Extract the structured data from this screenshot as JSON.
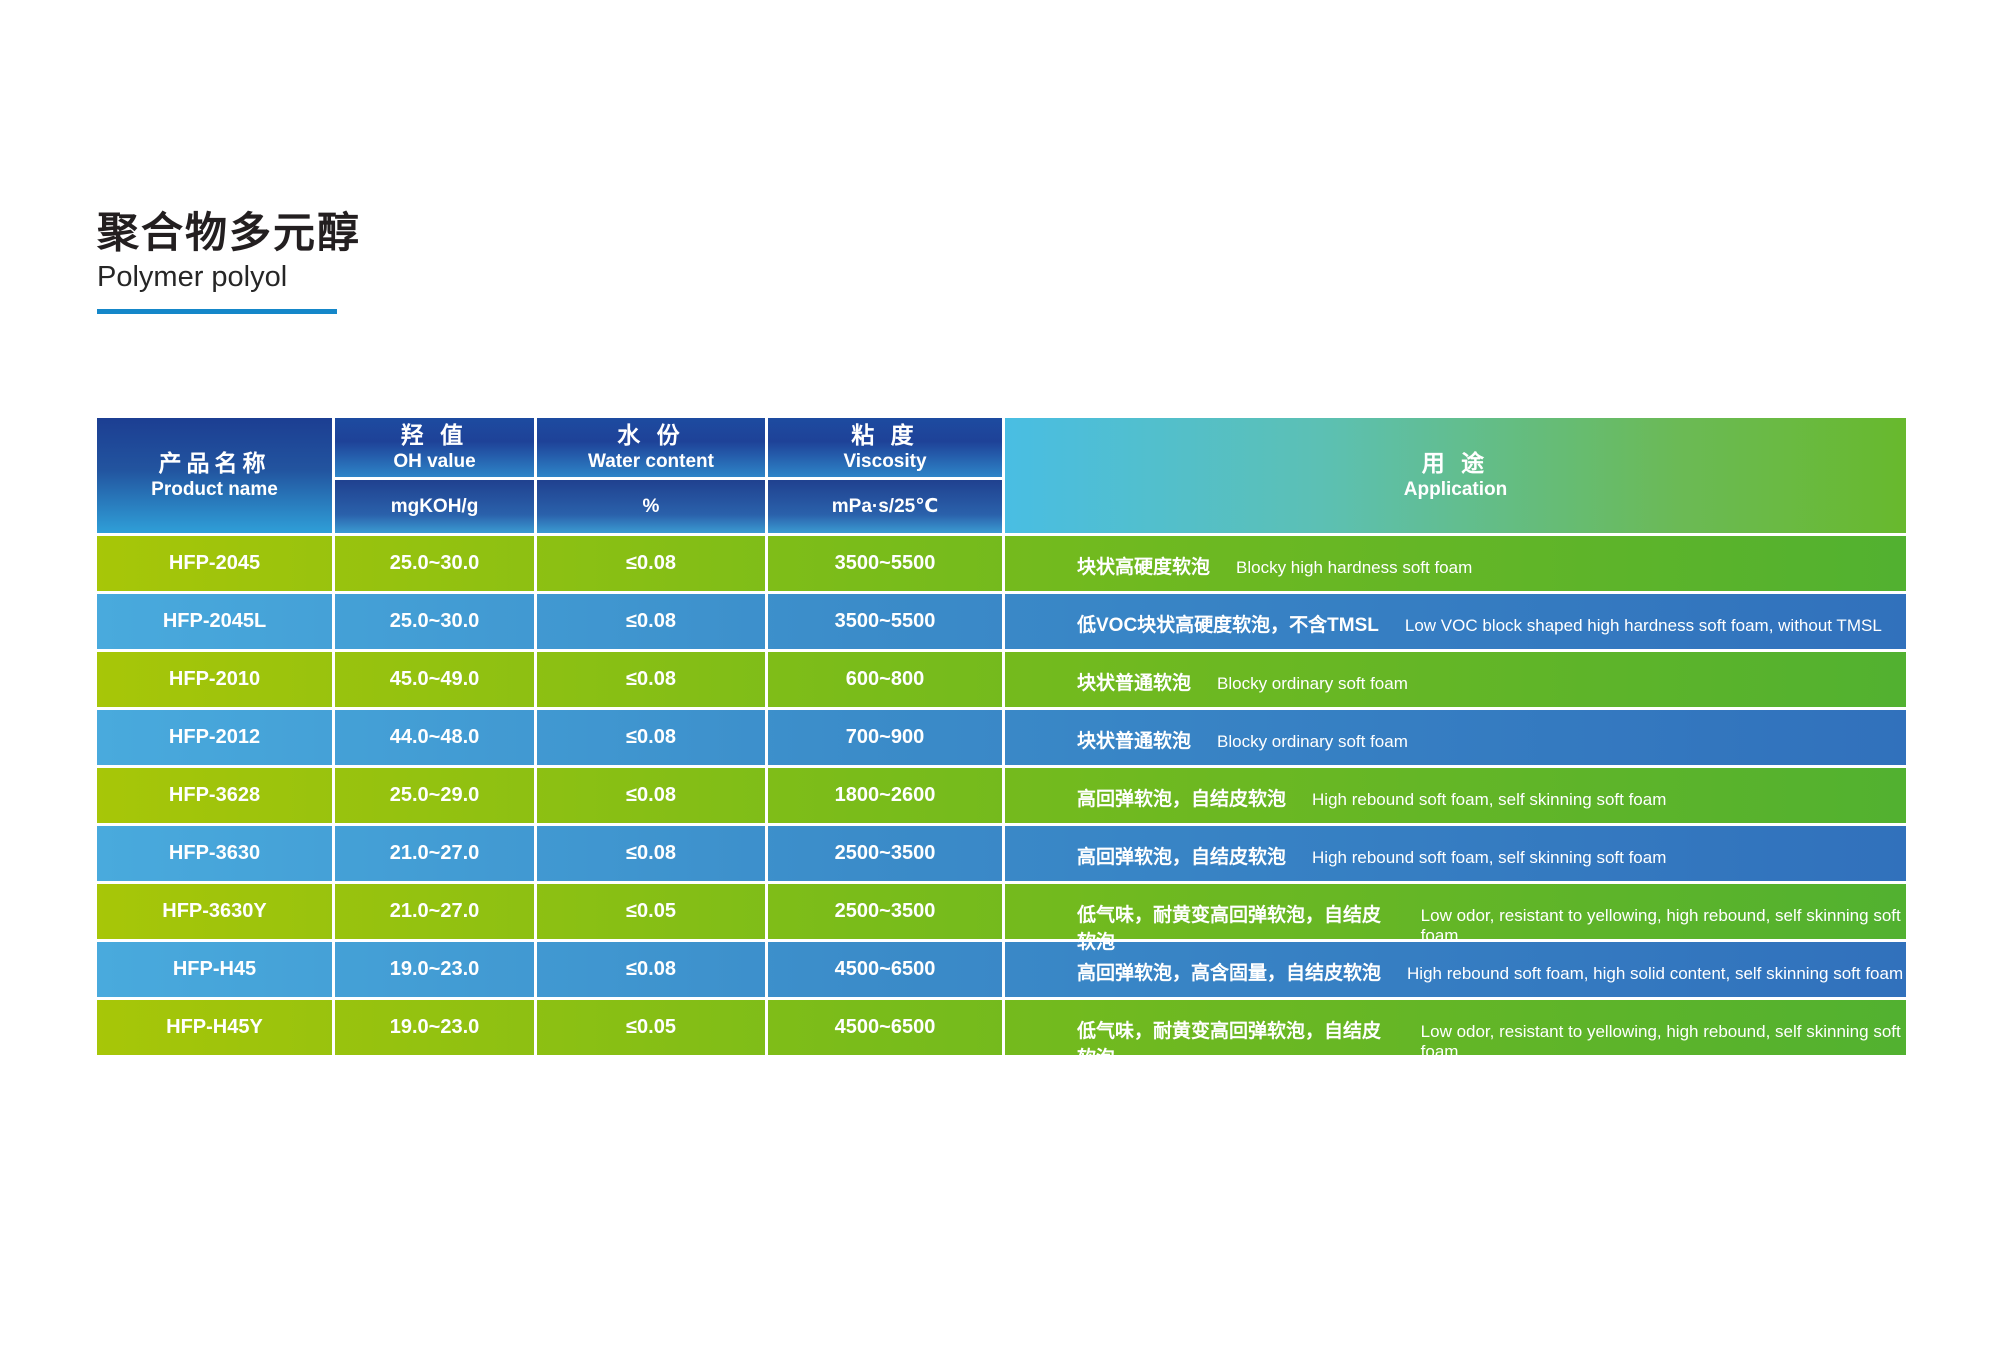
{
  "header": {
    "title_zh": "聚合物多元醇",
    "title_en": "Polymer polyol"
  },
  "table": {
    "header": {
      "product_zh": "产品名称",
      "product_en": "Product name",
      "cols": [
        {
          "zh": "羟 值",
          "en": "OH value",
          "unit": "mgKOH/g"
        },
        {
          "zh": "水 份",
          "en": "Water content",
          "unit": "%"
        },
        {
          "zh": "粘 度",
          "en": "Viscosity",
          "unit": "mPa·s/25℃"
        }
      ],
      "application_zh": "用 途",
      "application_en": "Application"
    },
    "rows": [
      {
        "name": "HFP-2045",
        "oh": "25.0~30.0",
        "water": "≤0.08",
        "viscosity": "3500~5500",
        "app_zh": "块状高硬度软泡",
        "app_en": "Blocky high hardness soft foam",
        "tone": "green"
      },
      {
        "name": "HFP-2045L",
        "oh": "25.0~30.0",
        "water": "≤0.08",
        "viscosity": "3500~5500",
        "app_zh": "低VOC块状高硬度软泡，不含TMSL",
        "app_en": "Low VOC block shaped high hardness soft foam, without TMSL",
        "tone": "blue"
      },
      {
        "name": "HFP-2010",
        "oh": "45.0~49.0",
        "water": "≤0.08",
        "viscosity": "600~800",
        "app_zh": "块状普通软泡",
        "app_en": "Blocky ordinary soft foam",
        "tone": "green"
      },
      {
        "name": "HFP-2012",
        "oh": "44.0~48.0",
        "water": "≤0.08",
        "viscosity": "700~900",
        "app_zh": "块状普通软泡",
        "app_en": "Blocky ordinary soft foam",
        "tone": "blue"
      },
      {
        "name": "HFP-3628",
        "oh": "25.0~29.0",
        "water": "≤0.08",
        "viscosity": "1800~2600",
        "app_zh": "高回弹软泡，自结皮软泡",
        "app_en": "High rebound soft foam, self skinning soft foam",
        "tone": "green"
      },
      {
        "name": "HFP-3630",
        "oh": "21.0~27.0",
        "water": "≤0.08",
        "viscosity": "2500~3500",
        "app_zh": "高回弹软泡，自结皮软泡",
        "app_en": "High rebound soft foam, self skinning soft foam",
        "tone": "blue"
      },
      {
        "name": "HFP-3630Y",
        "oh": "21.0~27.0",
        "water": "≤0.05",
        "viscosity": "2500~3500",
        "app_zh": "低气味，耐黄变高回弹软泡，自结皮软泡",
        "app_en": "Low odor, resistant to yellowing, high rebound, self skinning soft foam",
        "tone": "green"
      },
      {
        "name": "HFP-H45",
        "oh": "19.0~23.0",
        "water": "≤0.08",
        "viscosity": "4500~6500",
        "app_zh": "高回弹软泡，高含固量，自结皮软泡",
        "app_en": "High rebound soft foam, high solid content, self skinning soft foam",
        "tone": "blue"
      },
      {
        "name": "HFP-H45Y",
        "oh": "19.0~23.0",
        "water": "≤0.05",
        "viscosity": "4500~6500",
        "app_zh": "低气味，耐黄变高回弹软泡，自结皮软泡",
        "app_en": "Low odor, resistant to yellowing, high rebound, self skinning soft foam",
        "tone": "green"
      }
    ]
  },
  "colors": {
    "accent_underline": "#1587c9",
    "header_blue_dark": "#1c3e92",
    "header_blue_light": "#2f9fd8",
    "app_header_cyan": "#49bee3",
    "app_header_green": "#68b92d",
    "row_green_left": "#a7c608",
    "row_green_right": "#52b130",
    "row_blue_left": "#49aadd",
    "row_blue_right": "#3171bc"
  }
}
